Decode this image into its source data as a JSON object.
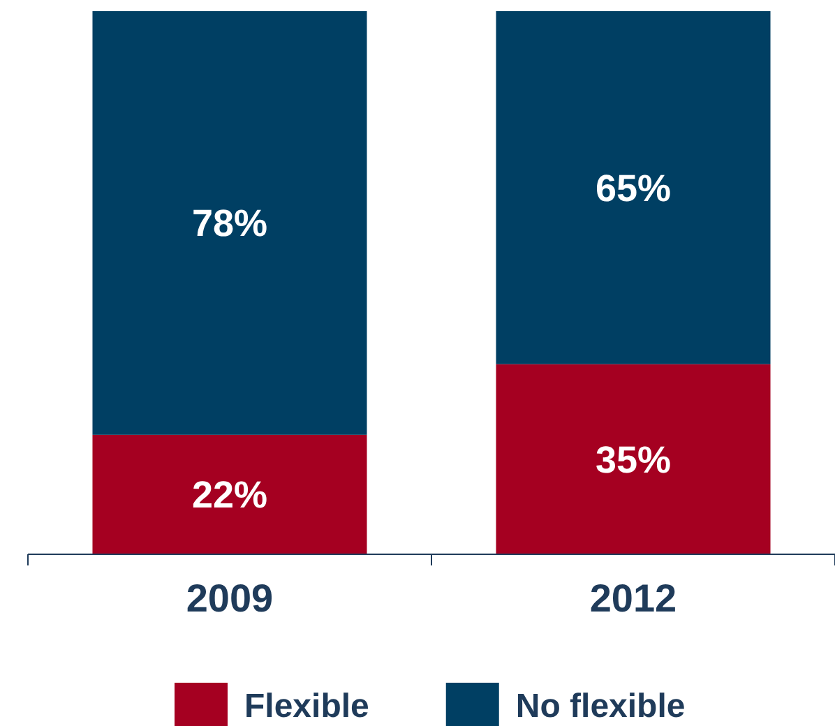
{
  "chart_data": {
    "type": "bar",
    "stacked": true,
    "categories": [
      "2009",
      "2012"
    ],
    "series": [
      {
        "name": "Flexible",
        "color": "#a50021",
        "values": [
          22,
          35
        ],
        "value_labels": [
          "22%",
          "35%"
        ]
      },
      {
        "name": "No flexible",
        "color": "#003f63",
        "values": [
          78,
          65
        ],
        "value_labels": [
          "78%",
          "65%"
        ]
      }
    ],
    "legend": "bottom"
  }
}
